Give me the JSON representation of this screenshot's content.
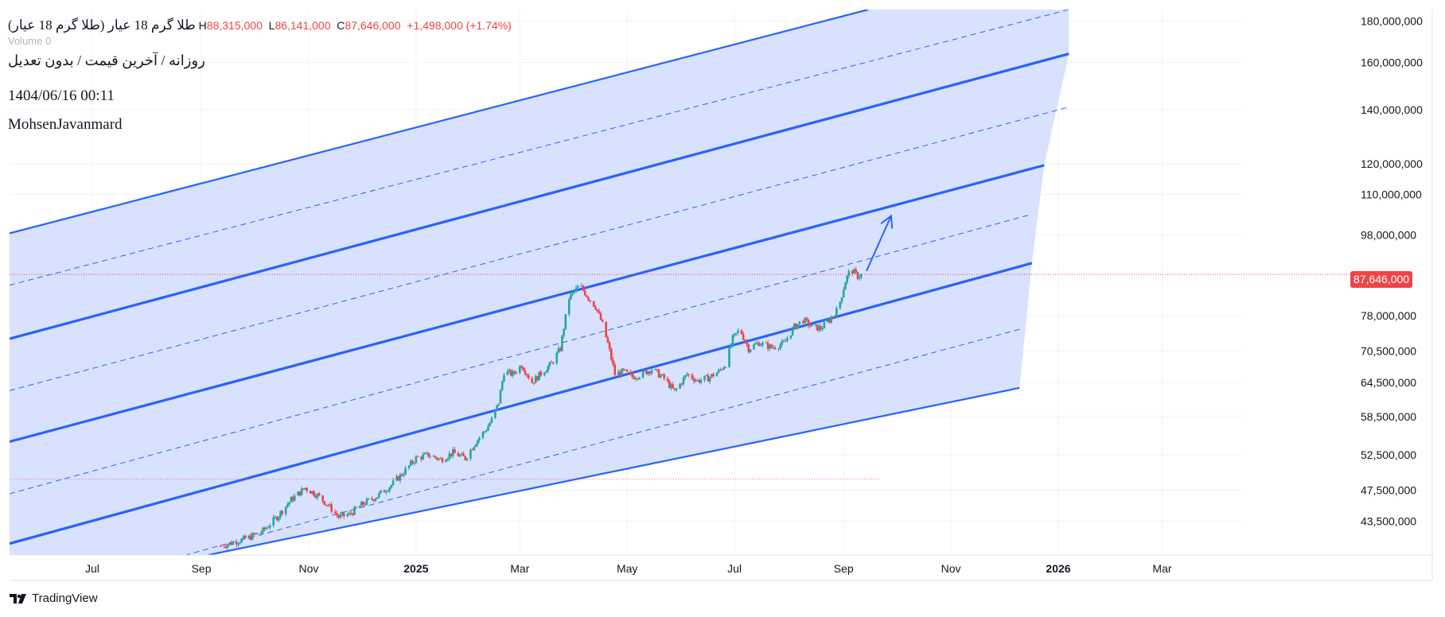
{
  "legend": {
    "symbol": "طلا گرم 18 عیار (طلا گرم 18 عیار)",
    "high_label": "H",
    "high_value": "88,315,000",
    "low_label": "L",
    "low_value": "86,141,000",
    "close_label": "C",
    "close_value": "87,646,000",
    "change": "+1,498,000 (+1.74%)",
    "volume_label": "Volume",
    "volume_value": "0"
  },
  "subtitle": "روزانه / آخرین قیمت / بدون تعدیل",
  "datetime": "1404/06/16 00:11",
  "author": "MohsenJavanmard",
  "brand": "TradingView",
  "current_price_label": "87,646,000",
  "colors": {
    "channel_line": "#2962ff",
    "channel_fill": "#d6e0ff",
    "candle_up": "#26a69a",
    "candle_down": "#ef4444"
  },
  "chart_data": {
    "type": "candlestick",
    "x_scale": "time",
    "y_scale": "log",
    "x_range": [
      "2024-05-15",
      "2026-04-15"
    ],
    "y_range": [
      39500000,
      186000000
    ],
    "x_tick_labels": [
      {
        "date": "2024-07-01",
        "label": "Jul",
        "bold": false
      },
      {
        "date": "2024-09-01",
        "label": "Sep",
        "bold": false
      },
      {
        "date": "2024-11-01",
        "label": "Nov",
        "bold": false
      },
      {
        "date": "2025-01-01",
        "label": "2025",
        "bold": true
      },
      {
        "date": "2025-03-01",
        "label": "Mar",
        "bold": false
      },
      {
        "date": "2025-05-01",
        "label": "May",
        "bold": false
      },
      {
        "date": "2025-07-01",
        "label": "Jul",
        "bold": false
      },
      {
        "date": "2025-09-01",
        "label": "Sep",
        "bold": false
      },
      {
        "date": "2025-11-01",
        "label": "Nov",
        "bold": false
      },
      {
        "date": "2026-01-01",
        "label": "2026",
        "bold": true
      },
      {
        "date": "2026-03-01",
        "label": "Mar",
        "bold": false
      }
    ],
    "y_tick_labels": [
      {
        "value": 180000000,
        "label": "180,000,000"
      },
      {
        "value": 160000000,
        "label": "160,000,000"
      },
      {
        "value": 140000000,
        "label": "140,000,000"
      },
      {
        "value": 120000000,
        "label": "120,000,000"
      },
      {
        "value": 110000000,
        "label": "110,000,000"
      },
      {
        "value": 98000000,
        "label": "98,000,000"
      },
      {
        "value": 78000000,
        "label": "78,000,000"
      },
      {
        "value": 70500000,
        "label": "70,500,000"
      },
      {
        "value": 64500000,
        "label": "64,500,000"
      },
      {
        "value": 58500000,
        "label": "58,500,000"
      },
      {
        "value": 52500000,
        "label": "52,500,000"
      },
      {
        "value": 47500000,
        "label": "47,500,000"
      },
      {
        "value": 43500000,
        "label": "43,500,000"
      }
    ],
    "current_price": 87646000,
    "reference_level": 49000000,
    "close_path": [
      [
        "2024-09-12",
        40500000
      ],
      [
        "2024-09-20",
        41000000
      ],
      [
        "2024-09-28",
        41500000
      ],
      [
        "2024-10-06",
        42300000
      ],
      [
        "2024-10-14",
        44000000
      ],
      [
        "2024-10-22",
        46200000
      ],
      [
        "2024-10-30",
        47800000
      ],
      [
        "2024-11-06",
        46800000
      ],
      [
        "2024-11-12",
        45500000
      ],
      [
        "2024-11-18",
        44000000
      ],
      [
        "2024-11-24",
        44300000
      ],
      [
        "2024-12-02",
        45700000
      ],
      [
        "2024-12-10",
        46700000
      ],
      [
        "2024-12-18",
        48200000
      ],
      [
        "2024-12-24",
        49700000
      ],
      [
        "2025-01-01",
        52000000
      ],
      [
        "2025-01-08",
        52500000
      ],
      [
        "2025-01-15",
        51800000
      ],
      [
        "2025-01-22",
        52800000
      ],
      [
        "2025-01-29",
        52000000
      ],
      [
        "2025-02-04",
        54500000
      ],
      [
        "2025-02-10",
        56500000
      ],
      [
        "2025-02-14",
        58500000
      ],
      [
        "2025-02-17",
        61000000
      ],
      [
        "2025-02-20",
        66500000
      ],
      [
        "2025-02-25",
        66000000
      ],
      [
        "2025-03-02",
        67800000
      ],
      [
        "2025-03-08",
        64500000
      ],
      [
        "2025-03-14",
        66500000
      ],
      [
        "2025-03-19",
        68000000
      ],
      [
        "2025-03-24",
        71000000
      ],
      [
        "2025-03-29",
        82000000
      ],
      [
        "2025-04-04",
        85000000
      ],
      [
        "2025-04-09",
        82000000
      ],
      [
        "2025-04-13",
        80000000
      ],
      [
        "2025-04-17",
        76000000
      ],
      [
        "2025-04-20",
        72000000
      ],
      [
        "2025-04-24",
        66000000
      ],
      [
        "2025-04-29",
        66500000
      ],
      [
        "2025-05-04",
        65500000
      ],
      [
        "2025-05-09",
        66000000
      ],
      [
        "2025-05-15",
        67000000
      ],
      [
        "2025-05-22",
        65200000
      ],
      [
        "2025-05-28",
        62800000
      ],
      [
        "2025-06-04",
        66000000
      ],
      [
        "2025-06-10",
        64800000
      ],
      [
        "2025-06-16",
        65300000
      ],
      [
        "2025-06-22",
        66500000
      ],
      [
        "2025-06-26",
        68000000
      ],
      [
        "2025-06-30",
        73000000
      ],
      [
        "2025-07-04",
        75000000
      ],
      [
        "2025-07-09",
        71000000
      ],
      [
        "2025-07-15",
        72200000
      ],
      [
        "2025-07-22",
        71200000
      ],
      [
        "2025-07-29",
        72000000
      ],
      [
        "2025-08-04",
        75500000
      ],
      [
        "2025-08-09",
        77000000
      ],
      [
        "2025-08-14",
        75500000
      ],
      [
        "2025-08-19",
        75200000
      ],
      [
        "2025-08-24",
        77000000
      ],
      [
        "2025-08-29",
        79500000
      ],
      [
        "2025-09-02",
        86000000
      ],
      [
        "2025-09-05",
        89000000
      ],
      [
        "2025-09-09",
        87200000
      ],
      [
        "2025-09-12",
        87646000
      ]
    ],
    "channels": [
      {
        "kind": "middle",
        "style": "thick",
        "start": [
          "2024-05-15",
          73000000
        ],
        "end": [
          "2026-01-07",
          164000000
        ]
      },
      {
        "kind": "middle",
        "style": "thick",
        "start": [
          "2024-05-15",
          54500000
        ],
        "end": [
          "2025-12-24",
          119500000
        ]
      },
      {
        "kind": "middle",
        "style": "thick",
        "start": [
          "2024-05-15",
          40800000
        ],
        "end": [
          "2025-12-17",
          90500000
        ]
      },
      {
        "kind": "border",
        "style": "solid",
        "start": [
          "2024-05-15",
          98500000
        ],
        "end": [
          "2025-09-15",
          186000000
        ]
      },
      {
        "kind": "border",
        "style": "solid",
        "start": [
          "2024-09-05",
          39500000
        ],
        "end": [
          "2025-12-10",
          63500000
        ]
      },
      {
        "kind": "quarter",
        "style": "dashed",
        "start": [
          "2024-05-15",
          85000000
        ],
        "end": [
          "2026-01-07",
          186000000
        ]
      },
      {
        "kind": "quarter",
        "style": "dashed",
        "start": [
          "2024-05-15",
          63000000
        ],
        "end": [
          "2026-01-07",
          141000000
        ]
      },
      {
        "kind": "quarter",
        "style": "dashed",
        "start": [
          "2024-05-15",
          47000000
        ],
        "end": [
          "2025-12-17",
          104000000
        ]
      },
      {
        "kind": "quarter",
        "style": "dashed",
        "start": [
          "2024-05-15",
          34500000
        ],
        "end": [
          "2025-12-10",
          75000000
        ]
      }
    ],
    "arrow": {
      "start": [
        "2025-09-14",
        88500000
      ],
      "end": [
        "2025-09-28",
        103500000
      ]
    }
  }
}
